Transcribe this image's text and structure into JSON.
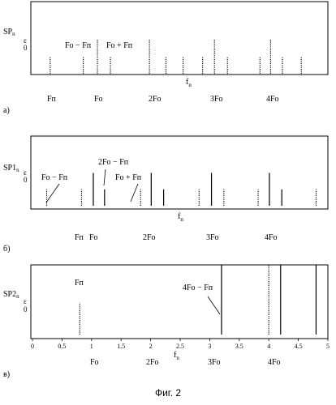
{
  "figure_caption": "Фиг. 2",
  "chart_data": [
    {
      "type": "stem",
      "panel_label": "а)",
      "ylabel": "SPn",
      "ylabel_main": "SP",
      "ylabel_sub": "n",
      "y_tick_top": "ε",
      "y_tick_zero": "0",
      "xlabel_main": "f",
      "xlabel_sub": "n",
      "bottom_labels": [
        "Fп",
        "Fo",
        "2Fo",
        "3Fo",
        "4Fo"
      ],
      "annotations": [
        "Fo − Fп",
        "Fo + Fп"
      ],
      "xlim": [
        0,
        5
      ],
      "ylim": [
        0,
        1
      ],
      "stems": [
        {
          "x": 0.3,
          "y": 0.45,
          "style": "dotted"
        },
        {
          "x": 0.86,
          "y": 0.45,
          "style": "dotted"
        },
        {
          "x": 1.1,
          "y": 0.9,
          "style": "dotted"
        },
        {
          "x": 1.32,
          "y": 0.45,
          "style": "dotted"
        },
        {
          "x": 1.98,
          "y": 0.9,
          "style": "dotted"
        },
        {
          "x": 2.26,
          "y": 0.45,
          "style": "dotted"
        },
        {
          "x": 2.55,
          "y": 0.45,
          "style": "dotted"
        },
        {
          "x": 2.88,
          "y": 0.45,
          "style": "dotted"
        },
        {
          "x": 3.08,
          "y": 0.9,
          "style": "dotted"
        },
        {
          "x": 3.3,
          "y": 0.45,
          "style": "dotted"
        },
        {
          "x": 3.85,
          "y": 0.45,
          "style": "dotted"
        },
        {
          "x": 4.03,
          "y": 0.9,
          "style": "dotted"
        },
        {
          "x": 4.23,
          "y": 0.45,
          "style": "dotted"
        },
        {
          "x": 4.55,
          "y": 0.45,
          "style": "dotted"
        }
      ]
    },
    {
      "type": "stem",
      "panel_label": "б)",
      "ylabel": "SP1n",
      "ylabel_main": "SP1",
      "ylabel_sub": "n",
      "y_tick_top": "ε",
      "y_tick_zero": "0",
      "xlabel_main": "f",
      "xlabel_sub": "n",
      "bottom_labels": [
        "Fп",
        "Fo",
        "2Fo",
        "3Fo",
        "4Fo"
      ],
      "annotations": [
        "Fo − Fп",
        "2Fo − Fп",
        "Fo + Fп"
      ],
      "xlim": [
        0,
        5
      ],
      "ylim": [
        0,
        1
      ],
      "stems": [
        {
          "x": 0.24,
          "y": 0.45,
          "style": "dotted"
        },
        {
          "x": 0.83,
          "y": 0.45,
          "style": "dotted"
        },
        {
          "x": 1.03,
          "y": 0.9,
          "style": "solid"
        },
        {
          "x": 1.22,
          "y": 0.45,
          "style": "solid"
        },
        {
          "x": 1.83,
          "y": 0.45,
          "style": "dotted"
        },
        {
          "x": 2.01,
          "y": 0.9,
          "style": "solid"
        },
        {
          "x": 2.22,
          "y": 0.45,
          "style": "solid"
        },
        {
          "x": 2.82,
          "y": 0.45,
          "style": "dotted"
        },
        {
          "x": 3.03,
          "y": 0.9,
          "style": "solid"
        },
        {
          "x": 3.24,
          "y": 0.45,
          "style": "dotted"
        },
        {
          "x": 3.82,
          "y": 0.45,
          "style": "dotted"
        },
        {
          "x": 4.01,
          "y": 0.9,
          "style": "solid"
        },
        {
          "x": 4.22,
          "y": 0.45,
          "style": "solid"
        },
        {
          "x": 4.8,
          "y": 0.45,
          "style": "dotted"
        }
      ]
    },
    {
      "type": "stem",
      "panel_label": "в)",
      "ylabel": "SP2n",
      "ylabel_main": "SP2",
      "ylabel_sub": "n",
      "y_tick_top": "ε",
      "y_tick_zero": "0",
      "xlabel_main": "f",
      "xlabel_sub": "n",
      "bottom_labels": [
        "Fo",
        "2Fo",
        "3Fo",
        "4Fo"
      ],
      "annotations": [
        "Fп",
        "4Fo − Fп"
      ],
      "x_ticks": [
        "0",
        "0.5",
        "1",
        "1.5",
        "2",
        "2.5",
        "3",
        "3.5",
        "4",
        "4.5",
        "5"
      ],
      "xlim": [
        0,
        5
      ],
      "ylim": [
        0,
        1
      ],
      "stems": [
        {
          "x": 0.8,
          "y": 0.45,
          "style": "dotted"
        },
        {
          "x": 3.2,
          "y": 1.0,
          "style": "solid"
        },
        {
          "x": 4.0,
          "y": 1.0,
          "style": "dotted"
        },
        {
          "x": 4.2,
          "y": 1.0,
          "style": "solid"
        },
        {
          "x": 4.8,
          "y": 1.0,
          "style": "solid"
        }
      ]
    }
  ]
}
